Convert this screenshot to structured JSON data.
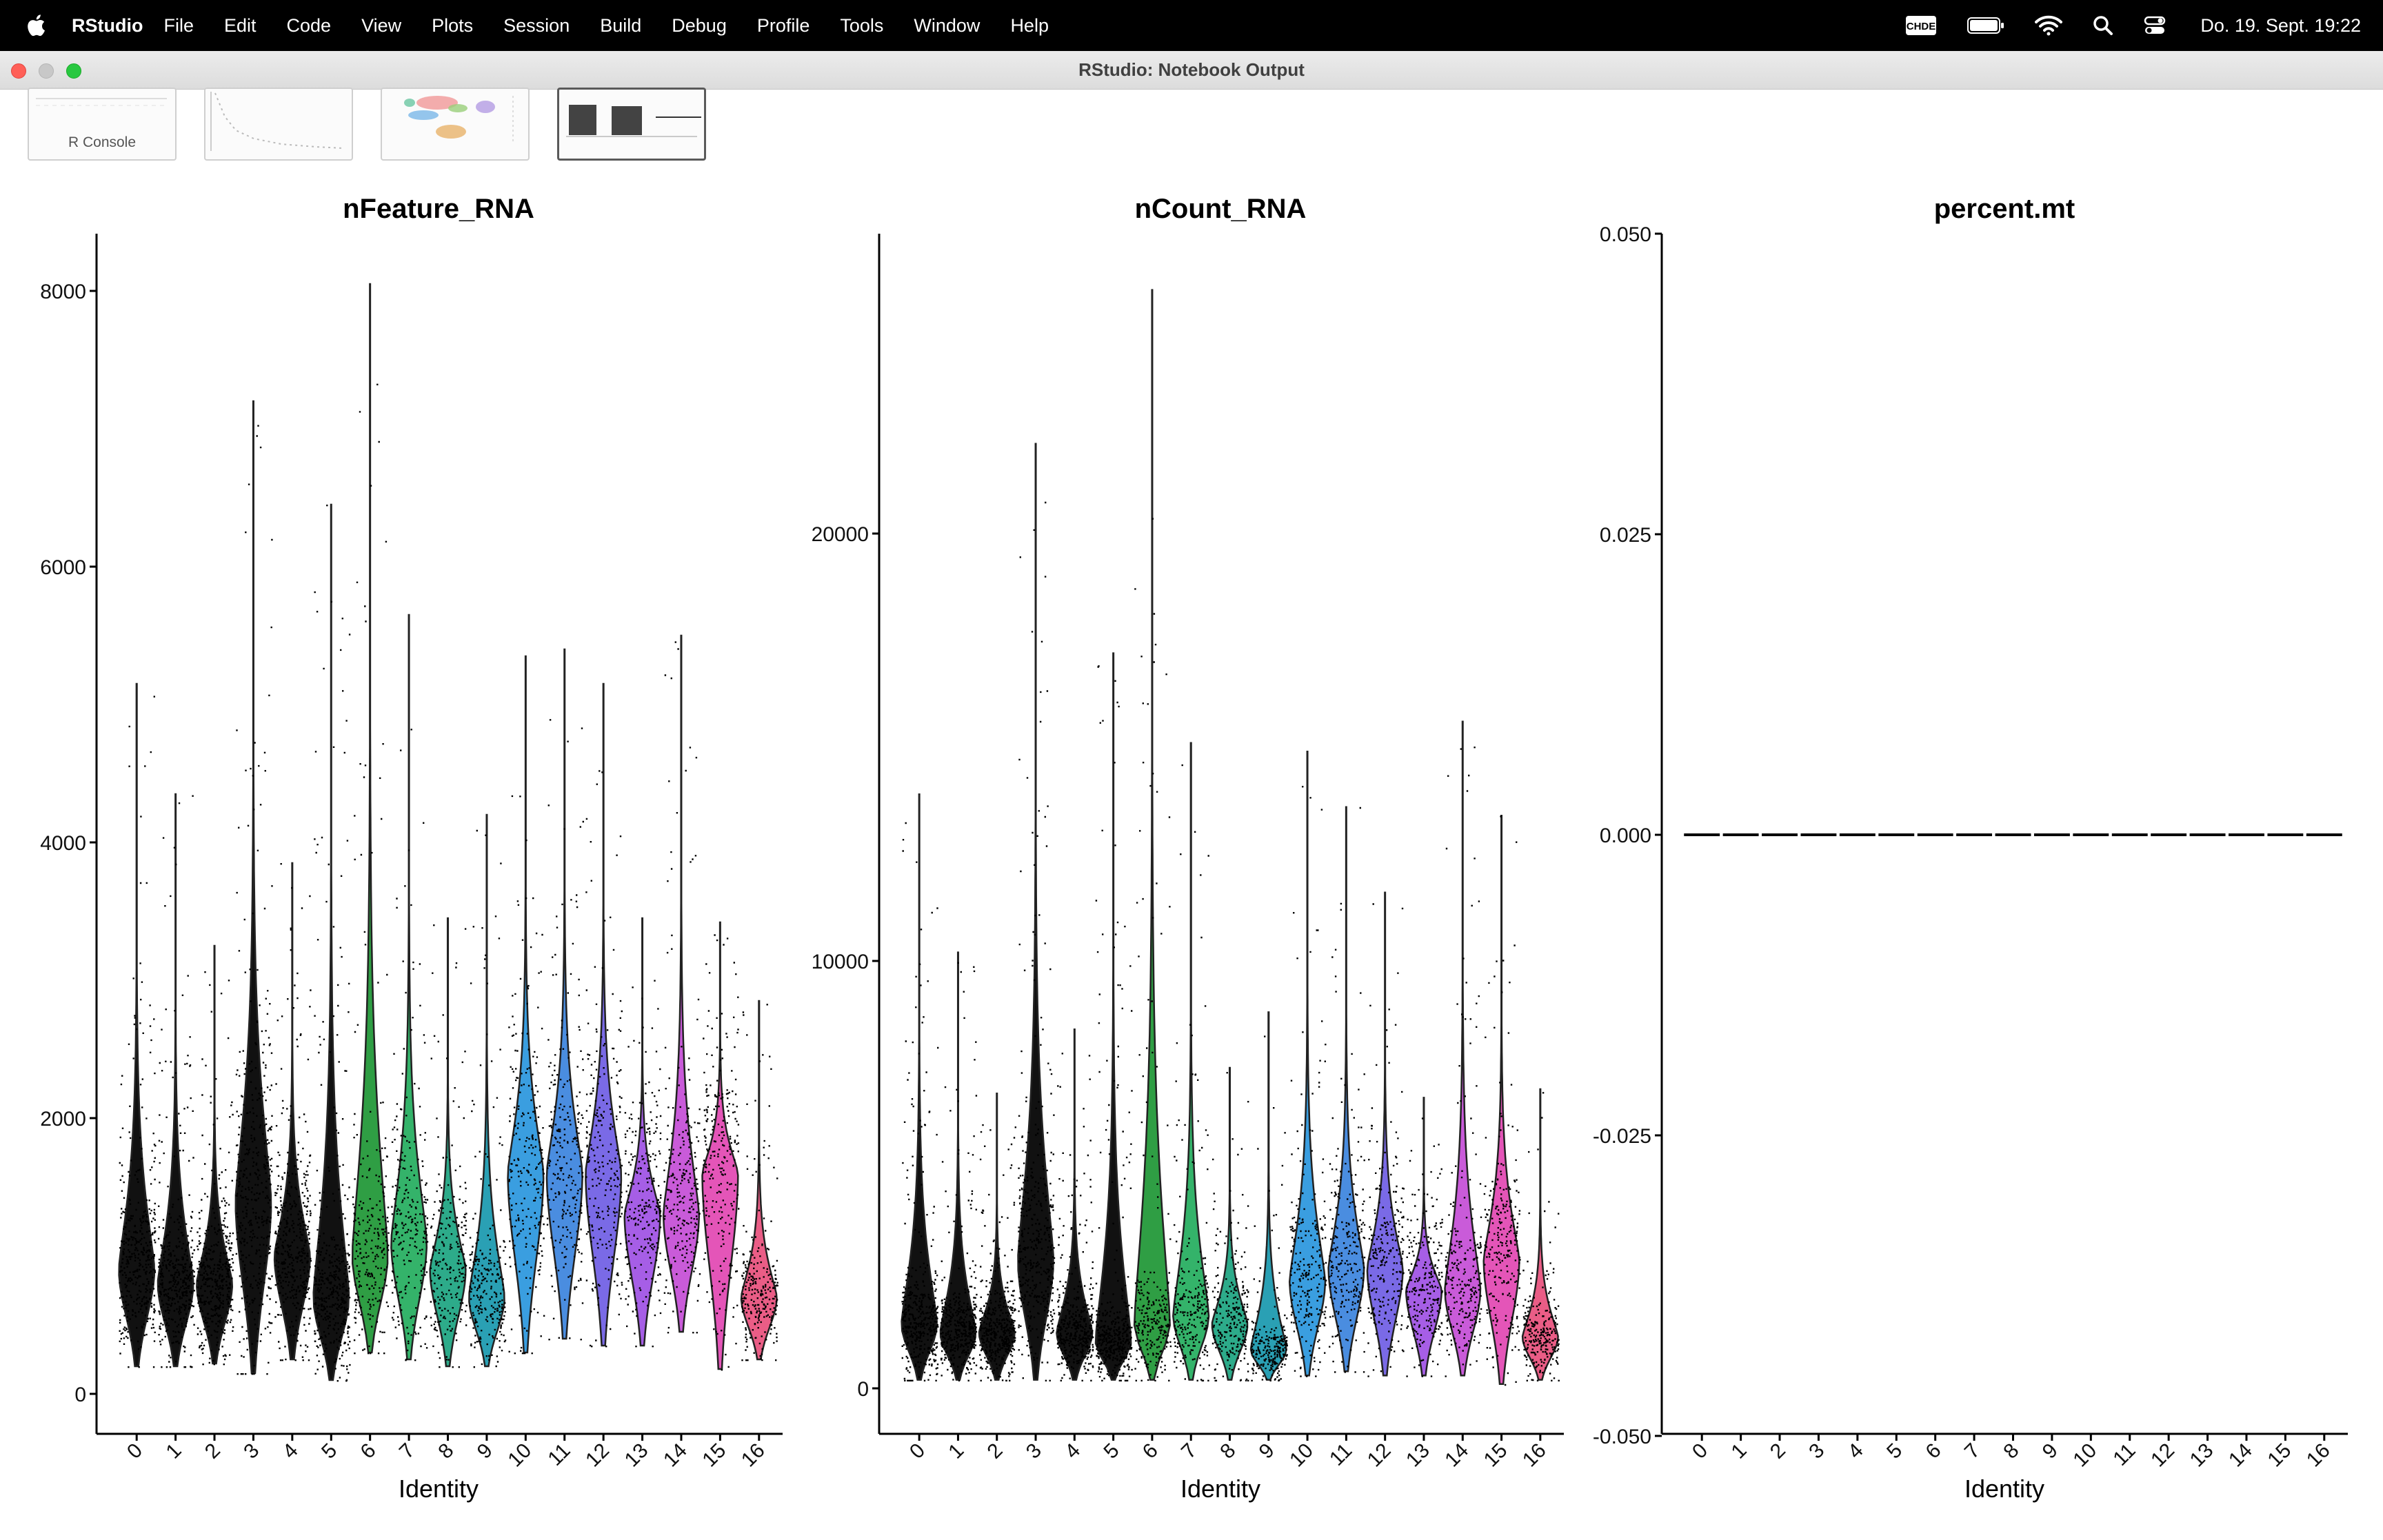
{
  "menubar": {
    "app_name": "RStudio",
    "items": [
      "File",
      "Edit",
      "Code",
      "View",
      "Plots",
      "Session",
      "Build",
      "Debug",
      "Profile",
      "Tools",
      "Window",
      "Help"
    ],
    "input_badge": "CHDE",
    "clock": "Do. 19. Sept.  19:22"
  },
  "window": {
    "title": "RStudio: Notebook Output"
  },
  "thumbnails": [
    {
      "label": "R Console",
      "active": false
    },
    {
      "label": "",
      "active": false
    },
    {
      "label": "",
      "active": false
    },
    {
      "label": "",
      "active": true
    }
  ],
  "colors": {
    "cluster_palette": [
      "#111111",
      "#111111",
      "#111111",
      "#111111",
      "#111111",
      "#111111",
      "#2f9e44",
      "#34b36a",
      "#2dab8a",
      "#2aa0b4",
      "#3a9ee0",
      "#4a8de0",
      "#7a6ae6",
      "#a65ee6",
      "#c95bd9",
      "#e455b8",
      "#ea5d86"
    ]
  },
  "chart_data": [
    {
      "type": "violin",
      "title": "nFeature_RNA",
      "xlabel": "Identity",
      "ylabel": "",
      "categories": [
        "0",
        "1",
        "2",
        "3",
        "4",
        "5",
        "6",
        "7",
        "8",
        "9",
        "10",
        "11",
        "12",
        "13",
        "14",
        "15",
        "16"
      ],
      "yticks": [
        0,
        2000,
        4000,
        6000,
        8000
      ],
      "ylim": [
        -150,
        8500
      ],
      "series": [
        {
          "cluster": "0",
          "min": 200,
          "max": 5150,
          "median": 900
        },
        {
          "cluster": "1",
          "min": 200,
          "max": 4350,
          "median": 800
        },
        {
          "cluster": "2",
          "min": 220,
          "max": 3250,
          "median": 800
        },
        {
          "cluster": "3",
          "min": 150,
          "max": 7200,
          "median": 1400
        },
        {
          "cluster": "4",
          "min": 250,
          "max": 3850,
          "median": 1000
        },
        {
          "cluster": "5",
          "min": 100,
          "max": 6450,
          "median": 700
        },
        {
          "cluster": "6",
          "min": 300,
          "max": 8050,
          "median": 1000
        },
        {
          "cluster": "7",
          "min": 250,
          "max": 5650,
          "median": 1100
        },
        {
          "cluster": "8",
          "min": 200,
          "max": 3450,
          "median": 900
        },
        {
          "cluster": "9",
          "min": 200,
          "max": 4200,
          "median": 700
        },
        {
          "cluster": "10",
          "min": 300,
          "max": 5350,
          "median": 1600
        },
        {
          "cluster": "11",
          "min": 400,
          "max": 5400,
          "median": 1600
        },
        {
          "cluster": "12",
          "min": 350,
          "max": 5150,
          "median": 1600
        },
        {
          "cluster": "13",
          "min": 350,
          "max": 3450,
          "median": 1300
        },
        {
          "cluster": "14",
          "min": 450,
          "max": 5500,
          "median": 1300
        },
        {
          "cluster": "15",
          "min": 180,
          "max": 3420,
          "median": 1600
        },
        {
          "cluster": "16",
          "min": 250,
          "max": 2850,
          "median": 700
        }
      ]
    },
    {
      "type": "violin",
      "title": "nCount_RNA",
      "xlabel": "Identity",
      "ylabel": "",
      "categories": [
        "0",
        "1",
        "2",
        "3",
        "4",
        "5",
        "6",
        "7",
        "8",
        "9",
        "10",
        "11",
        "12",
        "13",
        "14",
        "15",
        "16"
      ],
      "yticks": [
        0,
        10000,
        20000
      ],
      "ylim": [
        -1000,
        27000
      ],
      "series": [
        {
          "cluster": "0",
          "min": 200,
          "max": 13900,
          "median": 1500
        },
        {
          "cluster": "1",
          "min": 200,
          "max": 10200,
          "median": 1300
        },
        {
          "cluster": "2",
          "min": 200,
          "max": 6900,
          "median": 1300
        },
        {
          "cluster": "3",
          "min": 200,
          "max": 22100,
          "median": 3000
        },
        {
          "cluster": "4",
          "min": 200,
          "max": 8400,
          "median": 1300
        },
        {
          "cluster": "5",
          "min": 200,
          "max": 17200,
          "median": 1100
        },
        {
          "cluster": "6",
          "min": 200,
          "max": 25700,
          "median": 1500
        },
        {
          "cluster": "7",
          "min": 200,
          "max": 15100,
          "median": 1700
        },
        {
          "cluster": "8",
          "min": 200,
          "max": 7500,
          "median": 1500
        },
        {
          "cluster": "9",
          "min": 200,
          "max": 8800,
          "median": 900
        },
        {
          "cluster": "10",
          "min": 300,
          "max": 14900,
          "median": 2500
        },
        {
          "cluster": "11",
          "min": 400,
          "max": 13600,
          "median": 2800
        },
        {
          "cluster": "12",
          "min": 300,
          "max": 11600,
          "median": 2800
        },
        {
          "cluster": "13",
          "min": 300,
          "max": 6800,
          "median": 2300
        },
        {
          "cluster": "14",
          "min": 300,
          "max": 15600,
          "median": 2300
        },
        {
          "cluster": "15",
          "min": 100,
          "max": 13400,
          "median": 3000
        },
        {
          "cluster": "16",
          "min": 200,
          "max": 7000,
          "median": 1200
        }
      ]
    },
    {
      "type": "violin",
      "title": "percent.mt",
      "xlabel": "Identity",
      "ylabel": "",
      "categories": [
        "0",
        "1",
        "2",
        "3",
        "4",
        "5",
        "6",
        "7",
        "8",
        "9",
        "10",
        "11",
        "12",
        "13",
        "14",
        "15",
        "16"
      ],
      "yticks": [
        "-0.050",
        "-0.025",
        "0.000",
        "0.025",
        "0.050"
      ],
      "ylim": [
        -0.05,
        0.05
      ],
      "values": [
        0,
        0,
        0,
        0,
        0,
        0,
        0,
        0,
        0,
        0,
        0,
        0,
        0,
        0,
        0,
        0,
        0
      ]
    }
  ]
}
